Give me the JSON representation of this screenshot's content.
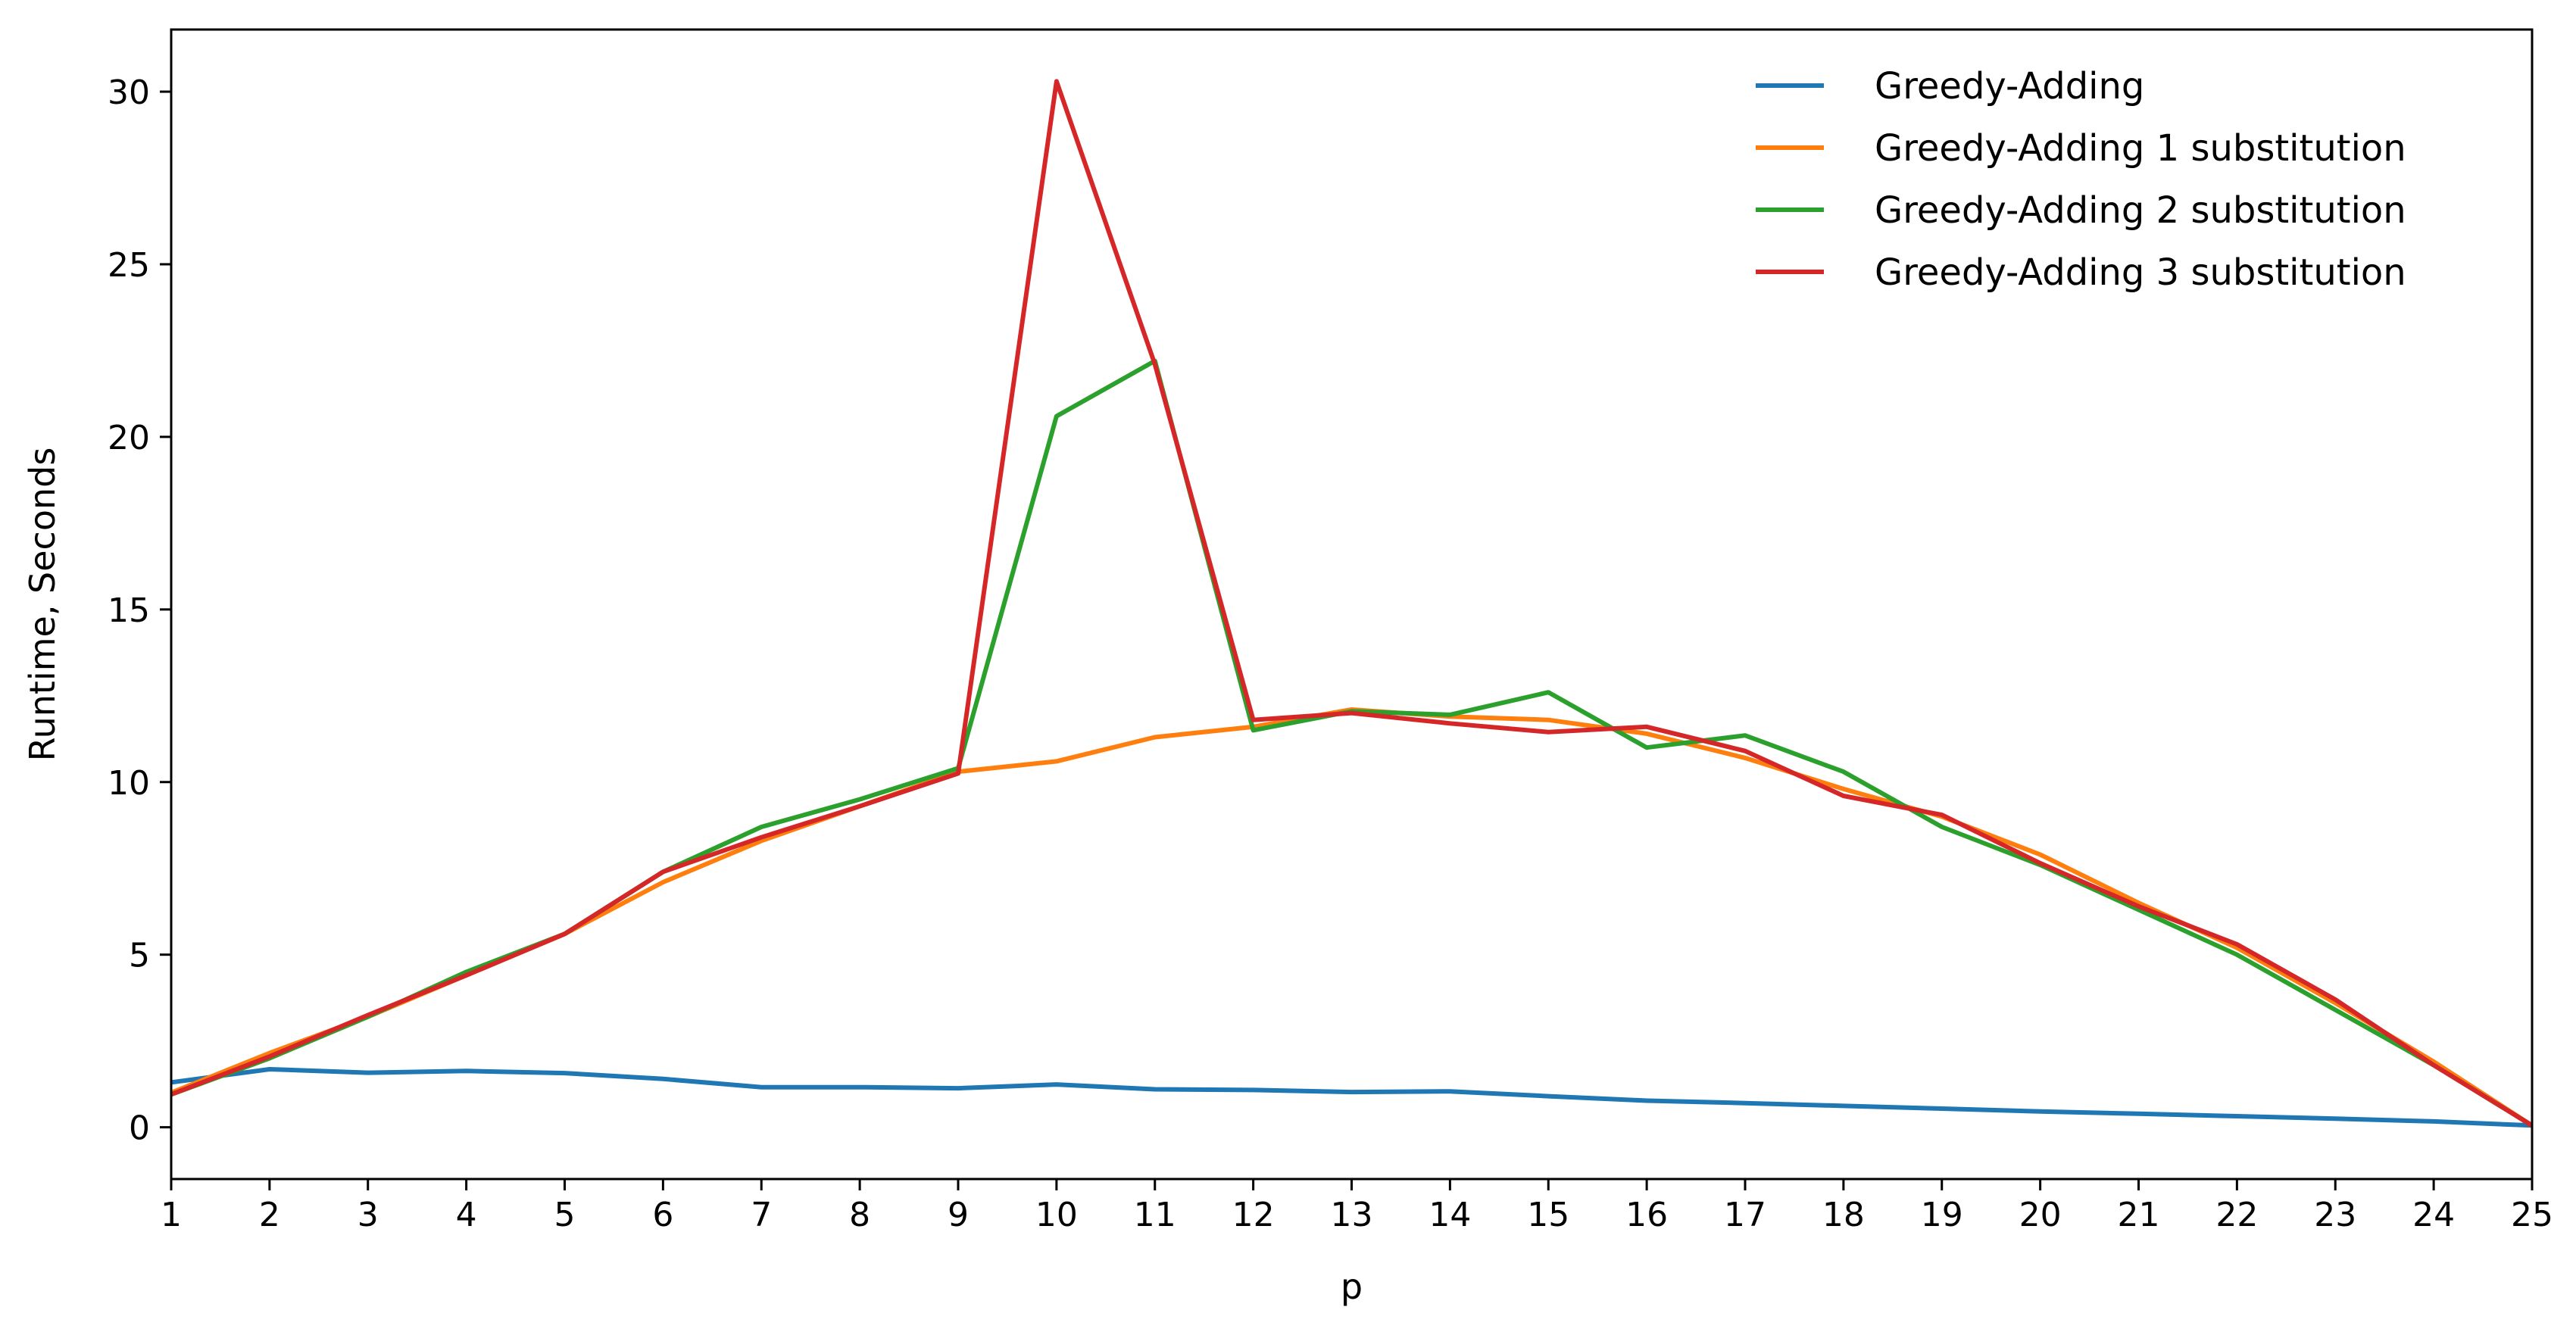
{
  "chart_data": {
    "type": "line",
    "xlabel": "p",
    "ylabel": "Runtime, Seconds",
    "x": [
      1,
      2,
      3,
      4,
      5,
      6,
      7,
      8,
      9,
      10,
      11,
      12,
      13,
      14,
      15,
      16,
      17,
      18,
      19,
      20,
      21,
      22,
      23,
      24,
      25
    ],
    "xlim": [
      1,
      25
    ],
    "ylim": [
      -1.5,
      31.8
    ],
    "xticks": [
      1,
      2,
      3,
      4,
      5,
      6,
      7,
      8,
      9,
      10,
      11,
      12,
      13,
      14,
      15,
      16,
      17,
      18,
      19,
      20,
      21,
      22,
      23,
      24,
      25
    ],
    "yticks": [
      0,
      5,
      10,
      15,
      20,
      25,
      30
    ],
    "grid": false,
    "legend_position": "top-right",
    "series": [
      {
        "name": "Greedy-Adding",
        "color": "#1f77b4",
        "values": [
          1.3,
          1.68,
          1.58,
          1.63,
          1.57,
          1.4,
          1.16,
          1.16,
          1.13,
          1.24,
          1.1,
          1.08,
          1.02,
          1.04,
          0.9,
          0.77,
          0.7,
          0.62,
          0.54,
          0.46,
          0.39,
          0.32,
          0.25,
          0.17,
          0.05
        ]
      },
      {
        "name": "Greedy-Adding 1 substitution",
        "color": "#ff7f0e",
        "values": [
          1.0,
          2.15,
          3.2,
          4.4,
          5.6,
          7.1,
          8.3,
          9.3,
          10.3,
          10.6,
          11.3,
          11.6,
          12.1,
          11.9,
          11.8,
          11.4,
          10.7,
          9.8,
          9.0,
          7.9,
          6.5,
          5.2,
          3.6,
          1.9,
          0.05
        ]
      },
      {
        "name": "Greedy-Adding 2 substitution",
        "color": "#2ca02c",
        "values": [
          0.95,
          2.0,
          3.2,
          4.5,
          5.6,
          7.4,
          8.7,
          9.5,
          10.4,
          20.6,
          22.2,
          11.5,
          12.05,
          11.95,
          12.6,
          11.0,
          11.35,
          10.3,
          8.7,
          7.6,
          6.3,
          5.0,
          3.4,
          1.8,
          0.05
        ]
      },
      {
        "name": "Greedy-Adding 3 substitution",
        "color": "#d62728",
        "values": [
          0.95,
          2.05,
          3.25,
          4.4,
          5.6,
          7.4,
          8.4,
          9.3,
          10.25,
          30.3,
          22.1,
          11.8,
          12.0,
          11.7,
          11.45,
          11.6,
          10.9,
          9.6,
          9.05,
          7.65,
          6.4,
          5.3,
          3.7,
          1.8,
          0.05
        ]
      }
    ]
  }
}
